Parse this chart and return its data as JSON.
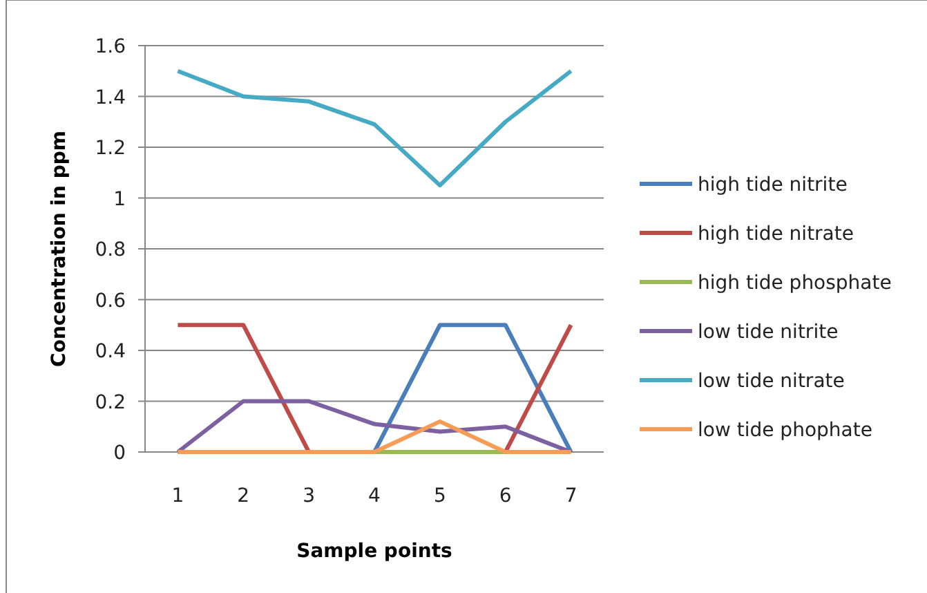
{
  "chart_data": {
    "type": "line",
    "xlabel": "Sample points",
    "ylabel": "Concentration in ppm",
    "categories": [
      "1",
      "2",
      "3",
      "4",
      "5",
      "6",
      "7"
    ],
    "ylim": [
      0,
      1.6
    ],
    "yticks": [
      0,
      0.2,
      0.4,
      0.6,
      0.8,
      1,
      1.2,
      1.4,
      1.6
    ],
    "grid": "y",
    "legend": "right",
    "marker": "none",
    "line_style": "solid",
    "series": [
      {
        "name": "high tide nitrite",
        "color": "#4a7ebb",
        "values": [
          0,
          0,
          0,
          0,
          0.5,
          0.5,
          0
        ]
      },
      {
        "name": "high tide nitrate",
        "color": "#be4b48",
        "values": [
          0.5,
          0.5,
          0,
          0,
          0,
          0,
          0.5
        ]
      },
      {
        "name": "high tide phosphate",
        "color": "#98b954",
        "values": [
          null,
          null,
          null,
          0,
          0,
          0,
          null
        ]
      },
      {
        "name": "low tide nitrite",
        "color": "#7d60a0",
        "values": [
          0,
          0.2,
          0.2,
          0.11,
          0.08,
          0.1,
          0
        ]
      },
      {
        "name": "low tide nitrate",
        "color": "#46aac5",
        "values": [
          1.5,
          1.4,
          1.38,
          1.29,
          1.05,
          1.3,
          1.5
        ]
      },
      {
        "name": "low tide phophate",
        "color": "#f59d56",
        "values": [
          0,
          0,
          0,
          0,
          0.12,
          0,
          0
        ]
      }
    ]
  }
}
